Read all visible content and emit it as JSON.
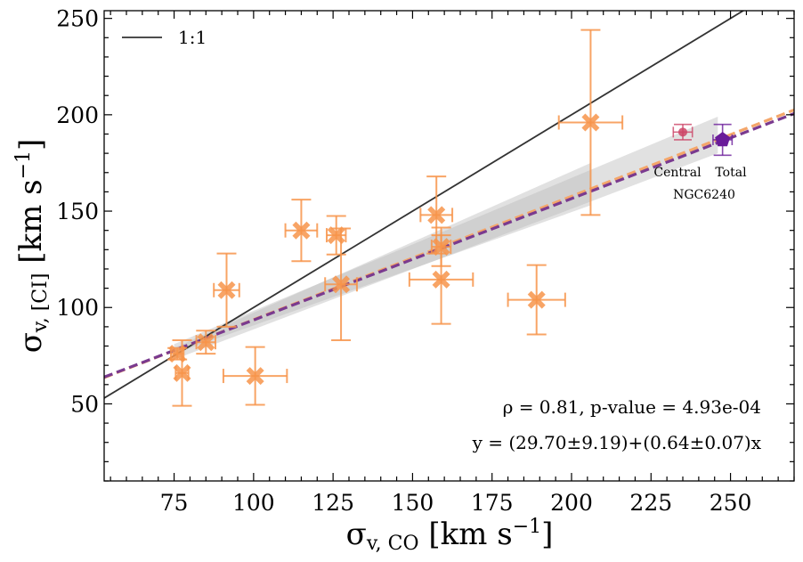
{
  "chart_data": {
    "type": "scatter",
    "xlabel": "σv, CO [km s−1]",
    "ylabel": "σv, [CI] [km s−1]",
    "xlabel_main": "σ",
    "xlabel_sub": "v, CO",
    "xlabel_unit": "[km s",
    "ylabel_main": "σ",
    "ylabel_sub": "v, [CI]",
    "ylabel_unit": "[km s",
    "unit_exp": "−1",
    "unit_close": "]",
    "xlim": [
      53,
      270
    ],
    "ylim": [
      10,
      254
    ],
    "xticks": [
      75,
      100,
      125,
      150,
      175,
      200,
      225,
      250
    ],
    "yticks": [
      50,
      100,
      150,
      200,
      250
    ],
    "legend": {
      "label": "1:1",
      "position": "top-left"
    },
    "one_to_one": {
      "x": [
        53,
        270
      ],
      "y": [
        53,
        270
      ]
    },
    "points": [
      {
        "x": 76,
        "y": 76,
        "xerr": 2,
        "yerr": 3
      },
      {
        "x": 77.5,
        "y": 66,
        "xerr": 2,
        "yerr": 17
      },
      {
        "x": 85,
        "y": 82,
        "xerr": 3,
        "yerr": 6
      },
      {
        "x": 91.5,
        "y": 109,
        "xerr": 4,
        "yerr": 19
      },
      {
        "x": 100.5,
        "y": 64.5,
        "xerr": 10,
        "yerr": 15
      },
      {
        "x": 115,
        "y": 140,
        "xerr": 5,
        "yerr": 16
      },
      {
        "x": 126,
        "y": 137.5,
        "xerr": 3,
        "yerr": 10
      },
      {
        "x": 127.5,
        "y": 112,
        "xerr": 5,
        "yerr": 29
      },
      {
        "x": 157.5,
        "y": 148,
        "xerr": 5,
        "yerr": 20
      },
      {
        "x": 159,
        "y": 131.5,
        "xerr": 3,
        "yerr": 10
      },
      {
        "x": 159,
        "y": 114.5,
        "xerr": 10,
        "yerr": 23
      },
      {
        "x": 189,
        "y": 104,
        "xerr": 9,
        "yerr": 18
      },
      {
        "x": 206,
        "y": 196,
        "xerr": 10,
        "yerr": 48
      }
    ],
    "fit_lines": [
      {
        "name": "fit-orange",
        "color": "#f4a66a",
        "intercept": 29.7,
        "slope": 0.64
      },
      {
        "name": "fit-purple",
        "color": "#7a3a8f",
        "intercept": 30.5,
        "slope": 0.63
      }
    ],
    "confidence_band_outer": {
      "x": [
        75,
        246
      ],
      "lower": [
        73,
        180
      ],
      "upper": [
        81,
        199
      ]
    },
    "confidence_band_inner": {
      "x": [
        75,
        206
      ],
      "lower": [
        76,
        153
      ],
      "upper": [
        79,
        175
      ]
    },
    "ngc6240": {
      "label": "NGC6240",
      "central": {
        "label": "Central",
        "x": 235,
        "y": 191,
        "xerr": 3,
        "yerr": 4,
        "color": "#cc4466"
      },
      "total": {
        "label": "Total",
        "x": 247.5,
        "y": 187,
        "xerr": 3,
        "yerr": 8,
        "color": "#6a1b9a"
      }
    },
    "annotations": {
      "rho": "ρ = 0.81, p-value = 4.93e-04",
      "fit": "y = (29.70±9.19)+(0.64±0.07)x"
    },
    "colors": {
      "points": "#f7944a",
      "line_1to1": "#333333",
      "band": "#bdbdbd"
    }
  }
}
